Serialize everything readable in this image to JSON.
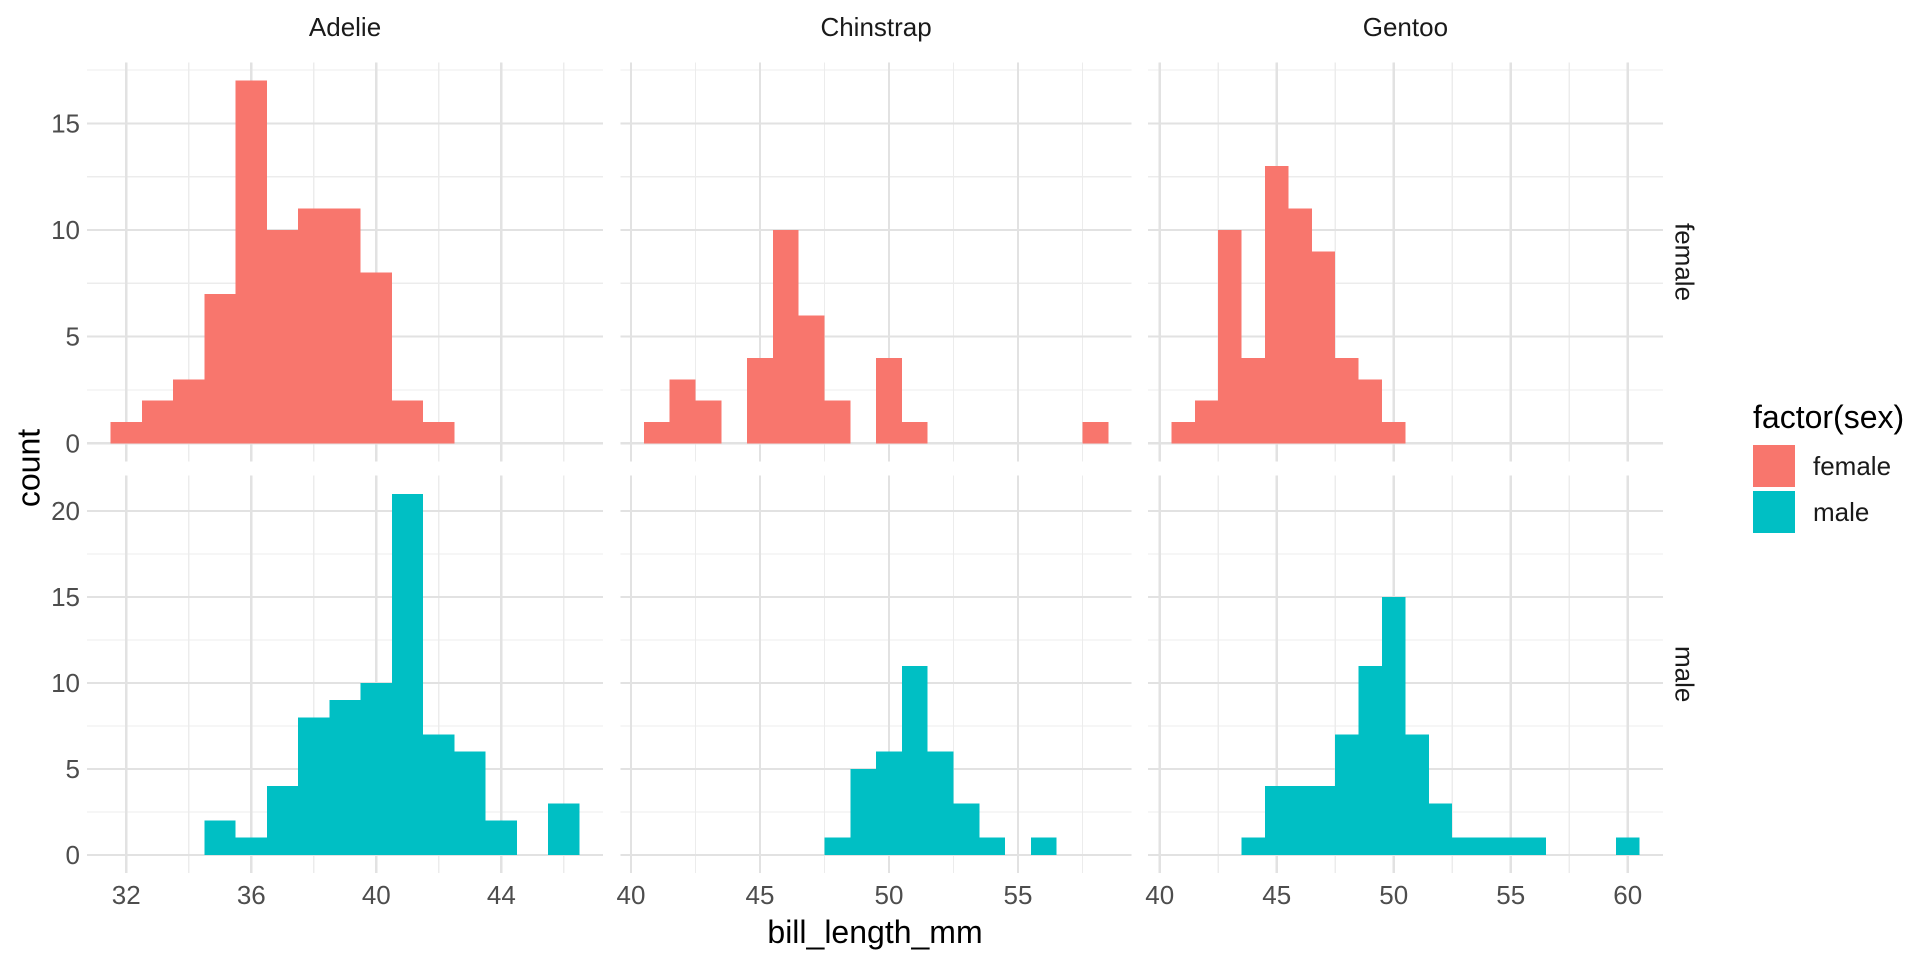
{
  "axes": {
    "x_title": "bill_length_mm",
    "y_title": "count"
  },
  "facets": {
    "columns": [
      "Adelie",
      "Chinstrap",
      "Gentoo"
    ],
    "rows": [
      "female",
      "male"
    ]
  },
  "legend": {
    "title": "factor(sex)",
    "items": [
      {
        "label": "female",
        "color": "#F8766D"
      },
      {
        "label": "male",
        "color": "#00BFC4"
      }
    ]
  },
  "theme": {
    "background": "#FFFFFF",
    "tick_label_color": "#4D4D4D",
    "title_color": "#000000",
    "strip_text_color": "#1A1A1A"
  },
  "chart_data": {
    "type": "bar",
    "subtype": "faceted_histogram",
    "title": "",
    "xlabel": "bill_length_mm",
    "ylabel": "count",
    "binwidth": 1,
    "grid": {
      "major_color": "#E2E2E2",
      "minor_color": "#ECECEC",
      "visible": true
    },
    "legend_position": "right",
    "columns": [
      {
        "label": "Adelie",
        "x_domain": [
          30.75,
          47.25
        ],
        "x_major_ticks": [
          32,
          36,
          40,
          44
        ],
        "x_minor_ticks": [
          34,
          38,
          42,
          46
        ]
      },
      {
        "label": "Chinstrap",
        "x_domain": [
          39.6,
          59.4
        ],
        "x_major_ticks": [
          40,
          45,
          50,
          55
        ],
        "x_minor_ticks": [
          42.5,
          47.5,
          52.5,
          57.5
        ]
      },
      {
        "label": "Gentoo",
        "x_domain": [
          39.5,
          61.5
        ],
        "x_major_ticks": [
          40,
          45,
          50,
          55,
          60
        ],
        "x_minor_ticks": [
          42.5,
          47.5,
          52.5,
          57.5
        ]
      }
    ],
    "rows": [
      {
        "label": "female",
        "color": "#F8766D",
        "y_domain": [
          -0.85,
          17.85
        ],
        "y_major_ticks": [
          0,
          5,
          10,
          15
        ],
        "y_minor_ticks": [
          2.5,
          7.5,
          12.5,
          17.5
        ]
      },
      {
        "label": "male",
        "color": "#00BFC4",
        "y_domain": [
          -1.05,
          22.05
        ],
        "y_major_ticks": [
          0,
          5,
          10,
          15,
          20
        ],
        "y_minor_ticks": [
          2.5,
          7.5,
          12.5,
          17.5
        ]
      }
    ],
    "series": [
      {
        "row": "female",
        "col": "Adelie",
        "bin_centers": [
          32,
          33,
          34,
          35,
          36,
          37,
          38,
          39,
          40,
          41,
          42
        ],
        "counts": [
          1,
          2,
          3,
          7,
          17,
          10,
          11,
          11,
          8,
          2,
          1
        ]
      },
      {
        "row": "female",
        "col": "Chinstrap",
        "bin_centers": [
          41,
          42,
          43,
          45,
          46,
          47,
          48,
          50,
          51,
          58
        ],
        "counts": [
          1,
          3,
          2,
          4,
          10,
          6,
          2,
          4,
          1,
          1
        ]
      },
      {
        "row": "female",
        "col": "Gentoo",
        "bin_centers": [
          41,
          42,
          43,
          44,
          45,
          46,
          47,
          48,
          49,
          50
        ],
        "counts": [
          1,
          2,
          10,
          4,
          13,
          11,
          9,
          4,
          3,
          1
        ]
      },
      {
        "row": "male",
        "col": "Adelie",
        "bin_centers": [
          35,
          36,
          37,
          38,
          39,
          40,
          41,
          42,
          43,
          44,
          46
        ],
        "counts": [
          2,
          1,
          4,
          8,
          9,
          10,
          21,
          7,
          6,
          2,
          3
        ]
      },
      {
        "row": "male",
        "col": "Chinstrap",
        "bin_centers": [
          48,
          49,
          50,
          51,
          52,
          53,
          54,
          56
        ],
        "counts": [
          1,
          5,
          6,
          11,
          6,
          3,
          1,
          1
        ]
      },
      {
        "row": "male",
        "col": "Gentoo",
        "bin_centers": [
          44,
          45,
          46,
          47,
          48,
          49,
          50,
          51,
          52,
          53,
          54,
          55,
          56,
          60
        ],
        "counts": [
          1,
          4,
          4,
          4,
          7,
          11,
          15,
          7,
          3,
          1,
          1,
          1,
          1,
          1
        ]
      }
    ]
  }
}
